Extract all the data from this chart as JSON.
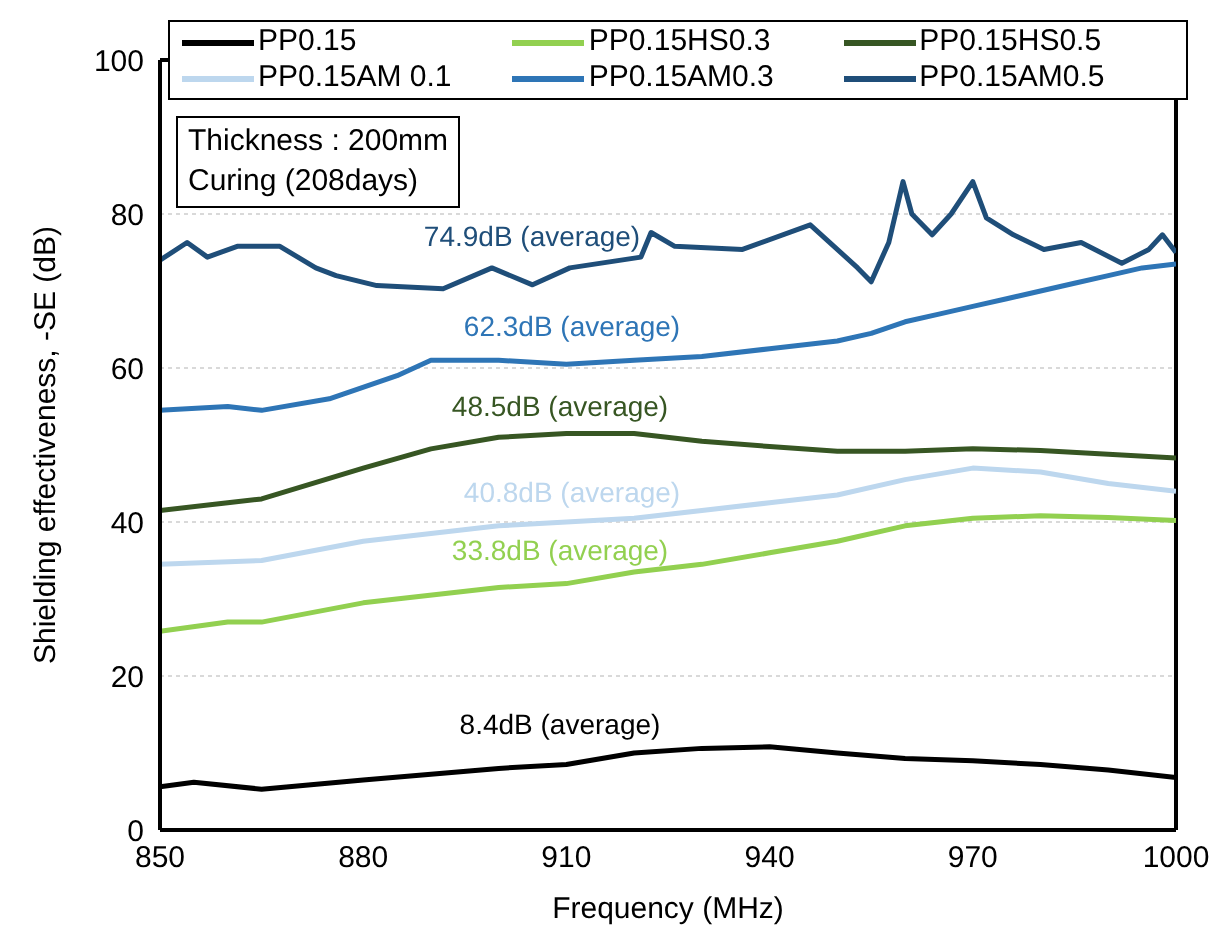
{
  "chart_data": {
    "type": "line",
    "xlabel": "Frequency (MHz)",
    "ylabel": "Shielding effectiveness, -SE (dB)",
    "xlim": [
      850,
      1000
    ],
    "xticks": [
      850,
      880,
      910,
      940,
      970,
      1000
    ],
    "ylim": [
      0,
      100
    ],
    "yticks": [
      0,
      20,
      40,
      60,
      80,
      100
    ],
    "grid": "y",
    "legend": "top",
    "line_style": "solid",
    "marker": "none",
    "series": [
      {
        "name": "PP0.15",
        "color": "#000000",
        "x": [
          850,
          855,
          865,
          880,
          900,
          910,
          920,
          930,
          940,
          950,
          960,
          970,
          980,
          990,
          1000
        ],
        "values": [
          5.6,
          6.2,
          5.3,
          6.5,
          8,
          8.5,
          10,
          10.6,
          10.8,
          10,
          9.3,
          9,
          8.5,
          7.8,
          6.8
        ]
      },
      {
        "name": "PP0.15HS0.3",
        "color": "#92d050",
        "x": [
          850,
          860,
          865,
          880,
          900,
          910,
          920,
          930,
          940,
          950,
          960,
          970,
          980,
          990,
          1000
        ],
        "values": [
          25.8,
          27,
          27,
          29.5,
          31.5,
          32,
          33.5,
          34.5,
          36,
          37.5,
          39.5,
          40.5,
          40.8,
          40.6,
          40.2
        ]
      },
      {
        "name": "PP0.15HS0.5",
        "color": "#375623",
        "x": [
          850,
          860,
          865,
          880,
          890,
          900,
          910,
          920,
          930,
          940,
          950,
          960,
          970,
          980,
          990,
          1000
        ],
        "values": [
          41.5,
          42.5,
          43,
          47,
          49.5,
          51,
          51.5,
          51.5,
          50.5,
          49.8,
          49.2,
          49.2,
          49.5,
          49.3,
          48.8,
          48.3
        ]
      },
      {
        "name": "PP0.15AM 0.1",
        "color": "#bdd7ee",
        "x": [
          850,
          865,
          880,
          900,
          910,
          920,
          930,
          940,
          950,
          960,
          970,
          980,
          990,
          1000
        ],
        "values": [
          34.5,
          35,
          37.5,
          39.5,
          40,
          40.5,
          41.5,
          42.5,
          43.5,
          45.5,
          47,
          46.5,
          45,
          44
        ]
      },
      {
        "name": "PP0.15AM0.3",
        "color": "#2e75b6",
        "x": [
          850,
          860,
          865,
          875,
          885,
          890,
          900,
          910,
          920,
          930,
          940,
          950,
          955,
          960,
          965,
          970,
          975,
          980,
          985,
          990,
          995,
          1000
        ],
        "values": [
          54.5,
          55,
          54.5,
          56,
          59,
          61,
          61,
          60.5,
          61,
          61.5,
          62.5,
          63.5,
          64.5,
          66,
          67,
          68,
          69,
          70,
          71,
          72,
          73,
          73.5
        ]
      },
      {
        "name": "PP0.15AM0.5",
        "color": "#1f4e79",
        "x": [
          850,
          854,
          857,
          861.4,
          867.7,
          873,
          876,
          882,
          891.8,
          899,
          905,
          910.5,
          921,
          922.5,
          926,
          936,
          946,
          953,
          955,
          957.6,
          959.7,
          961,
          964,
          966.8,
          970,
          972,
          976,
          980.5,
          986,
          992,
          996,
          998,
          1000
        ],
        "values": [
          74,
          76.3,
          74.4,
          75.8,
          75.8,
          73,
          72,
          70.7,
          70.3,
          73,
          70.8,
          73,
          74.4,
          77.6,
          75.8,
          75.4,
          78.6,
          73,
          71.2,
          76.3,
          84.2,
          80,
          77.3,
          80,
          84.2,
          79.5,
          77.3,
          75.4,
          76.3,
          73.6,
          75.4,
          77.3,
          75
        ]
      }
    ],
    "annotations": [
      "Thickness : 200mm",
      "Curing (208days)",
      "74.9dB (average)",
      "62.3dB (average)",
      "48.5dB (average)",
      "40.8dB (average)",
      "33.8dB (average)",
      "8.4dB (average)"
    ]
  }
}
